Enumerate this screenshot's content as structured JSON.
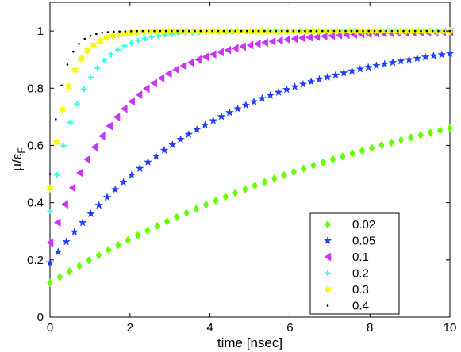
{
  "chart_data": {
    "type": "scatter",
    "xlabel": "time [nsec]",
    "ylabel": {
      "base": "μ/ε",
      "sub": "F"
    },
    "xlim": [
      0,
      10
    ],
    "ylim": [
      0,
      1.1
    ],
    "xticks": [
      "0",
      "2",
      "4",
      "6",
      "8",
      "10"
    ],
    "yticks": [
      "0",
      "0.2",
      "0.4",
      "0.6",
      "0.8",
      "1"
    ],
    "grid": false,
    "legend_position": "bottom-right",
    "series": [
      {
        "name": "0.02",
        "marker": "diamond",
        "color": "#66ff00",
        "y0": 0.12,
        "tau": 10.5,
        "points": 42
      },
      {
        "name": "0.05",
        "marker": "star",
        "color": "#1f3fff",
        "y0": 0.19,
        "tau": 4.3,
        "points": 50
      },
      {
        "name": "0.1",
        "marker": "triangle-left",
        "color": "#cc33ff",
        "y0": 0.26,
        "tau": 1.85,
        "points": 55
      },
      {
        "name": "0.2",
        "marker": "plus",
        "color": "#33ffe6",
        "y0": 0.37,
        "tau": 0.75,
        "points": 60
      },
      {
        "name": "0.3",
        "marker": "hexagram",
        "color": "#f2ff00",
        "y0": 0.45,
        "tau": 0.45,
        "points": 65
      },
      {
        "name": "0.4",
        "marker": "dot",
        "color": "#000000",
        "y0": 0.5,
        "tau": 0.3,
        "points": 70
      }
    ]
  }
}
